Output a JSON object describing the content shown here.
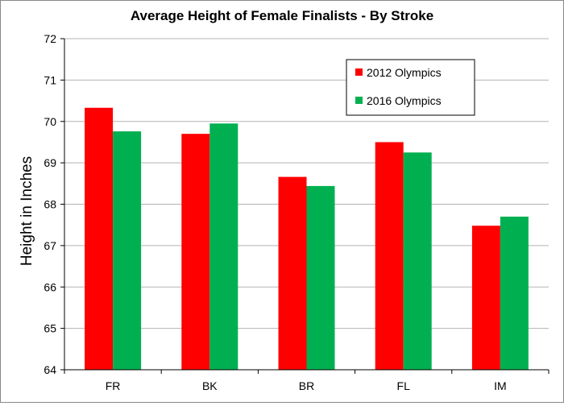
{
  "chart_data": {
    "type": "bar",
    "title": "Average Height of Female Finalists - By Stroke",
    "xlabel": "",
    "ylabel": "Height in Inches",
    "categories": [
      "FR",
      "BK",
      "BR",
      "FL",
      "IM"
    ],
    "series": [
      {
        "name": "2012 Olympics",
        "color": "#ff0000",
        "values": [
          70.33,
          69.7,
          68.66,
          69.5,
          67.48
        ]
      },
      {
        "name": "2016 Olympics",
        "color": "#00b050",
        "values": [
          69.76,
          69.95,
          68.44,
          69.25,
          67.7
        ]
      }
    ],
    "ylim": [
      64,
      72
    ],
    "yticks": [
      "64",
      "65",
      "66",
      "67",
      "68",
      "69",
      "70",
      "71",
      "72"
    ],
    "grid": true,
    "legend_position": "top-right"
  }
}
